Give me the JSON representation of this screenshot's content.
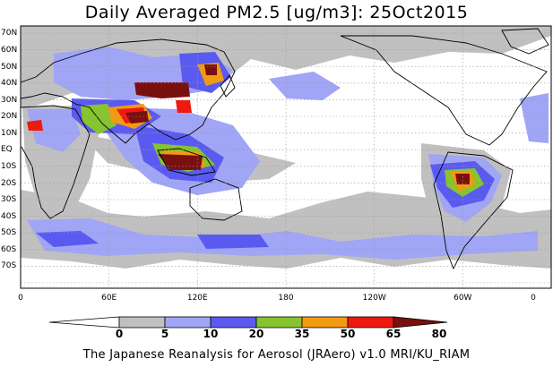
{
  "title": "Daily Averaged PM2.5 [ug/m3]: 25Oct2015",
  "credit": "The Japanese Reanalysis for Aerosol (JRAero) v1.0 MRI/KU_RIAM",
  "lat_labels": [
    "70N",
    "60N",
    "50N",
    "40N",
    "30N",
    "20N",
    "10N",
    "EQ",
    "10S",
    "20S",
    "30S",
    "40S",
    "50S",
    "60S",
    "70S"
  ],
  "lon_labels": [
    "0",
    "60E",
    "120E",
    "180",
    "120W",
    "60W",
    "0"
  ],
  "colorbar": {
    "levels": [
      "0",
      "5",
      "10",
      "20",
      "35",
      "50",
      "65",
      "80"
    ],
    "colors": [
      "#ffffff",
      "#c0c0c0",
      "#a0a5f5",
      "#5a5af0",
      "#86c430",
      "#f29a10",
      "#ee1a10",
      "#7a0f0f"
    ]
  }
}
